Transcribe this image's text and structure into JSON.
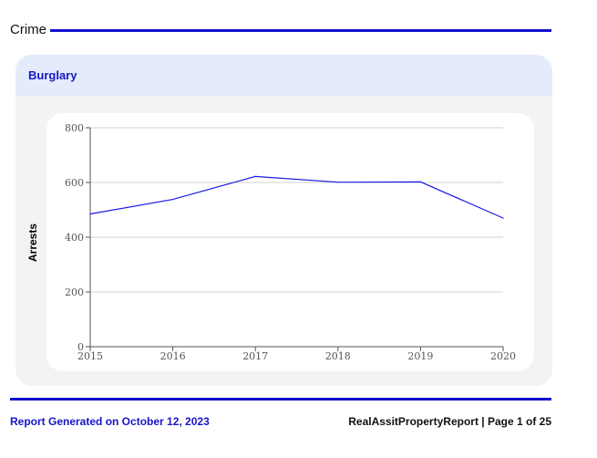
{
  "section": {
    "title": "Crime"
  },
  "card": {
    "title": "Burglary"
  },
  "colors": {
    "accent": "#1010d0",
    "line": "#1a1ae6",
    "card_bg": "#f2f3f5",
    "card_header_bg": "#e4ecfb"
  },
  "chart_data": {
    "type": "line",
    "title": "",
    "xlabel": "",
    "ylabel": "Arrests",
    "x": [
      "2015",
      "2016",
      "2017",
      "2018",
      "2019",
      "2020"
    ],
    "series": [
      {
        "values": [
          485,
          538,
          622,
          601,
          602,
          470
        ]
      }
    ],
    "ylim": [
      0,
      800
    ],
    "yticks": [
      0,
      200,
      400,
      600,
      800
    ],
    "grid": true,
    "legend": "none"
  },
  "footer": {
    "generated": "Report Generated on October 12, 2023",
    "page_info": "RealAssitPropertyReport | Page 1 of 25"
  }
}
